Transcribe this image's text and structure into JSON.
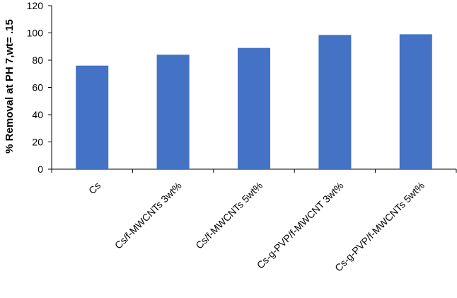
{
  "chart_data": {
    "type": "bar",
    "title": "",
    "xlabel": "",
    "ylabel": "% Removal at PH 7,wt= .15",
    "categories": [
      "Cs",
      "Cs/f-MWCNTs 3wt%",
      "Cs/f-MWCNTs 5wt%",
      "Cs-g-PVP/f-MWCNT 3wt%",
      "Cs-g-PVP/f-MWCNTs 5wt%"
    ],
    "values": [
      76,
      84,
      89,
      98.5,
      99
    ],
    "ylim": [
      0,
      120
    ],
    "yticks": [
      "0",
      "20",
      "40",
      "60",
      "80",
      "100",
      "120"
    ],
    "bar_color": "#4472C4",
    "grid": false,
    "legend": "none"
  }
}
